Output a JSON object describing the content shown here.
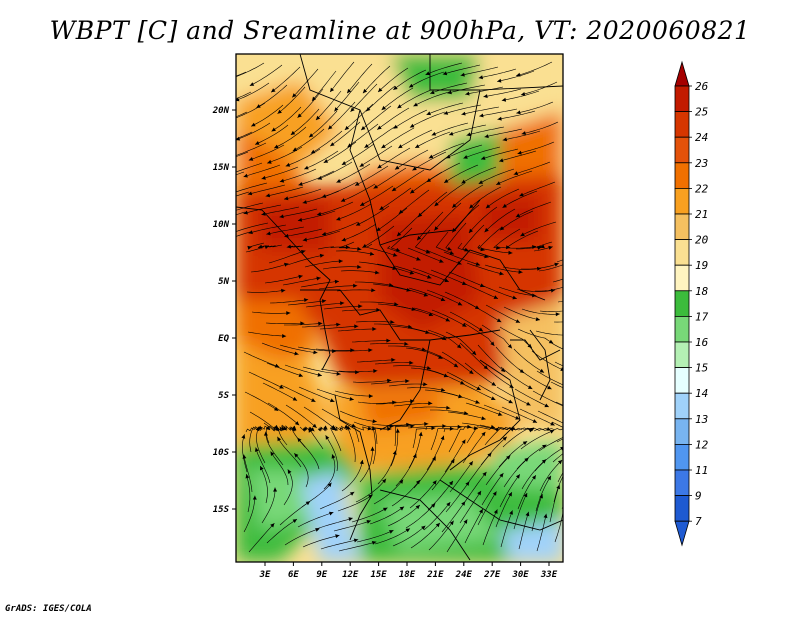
{
  "title": "WBPT [C] and Sreamline at 900hPa, VT: 2020060821",
  "footer": "GrADS: IGES/COLA",
  "map": {
    "variable": "WBPT",
    "units": "C",
    "level": "900hPa",
    "valid_time": "2020060821",
    "lat_labels": [
      "20N",
      "15N",
      "10N",
      "5N",
      "EQ",
      "5S",
      "10S",
      "15S"
    ],
    "lon_labels": [
      "3E",
      "6E",
      "9E",
      "12E",
      "15E",
      "18E",
      "21E",
      "24E",
      "27E",
      "30E",
      "33E"
    ]
  },
  "colorbar": {
    "labels": [
      "26",
      "25",
      "24",
      "23",
      "22",
      "21",
      "20",
      "19",
      "18",
      "17",
      "16",
      "15",
      "14",
      "13",
      "12",
      "11",
      "9",
      "7"
    ],
    "colors": [
      "#a50000",
      "#c21a00",
      "#d63600",
      "#e4520a",
      "#f07000",
      "#f8a020",
      "#f5c060",
      "#fae092",
      "#fff4c0",
      "#3cbc3c",
      "#78d878",
      "#b4f0b4",
      "#e6ffff",
      "#a0d2fa",
      "#78b4f0",
      "#5096f0",
      "#3c78e6",
      "#1e5ad2"
    ]
  }
}
